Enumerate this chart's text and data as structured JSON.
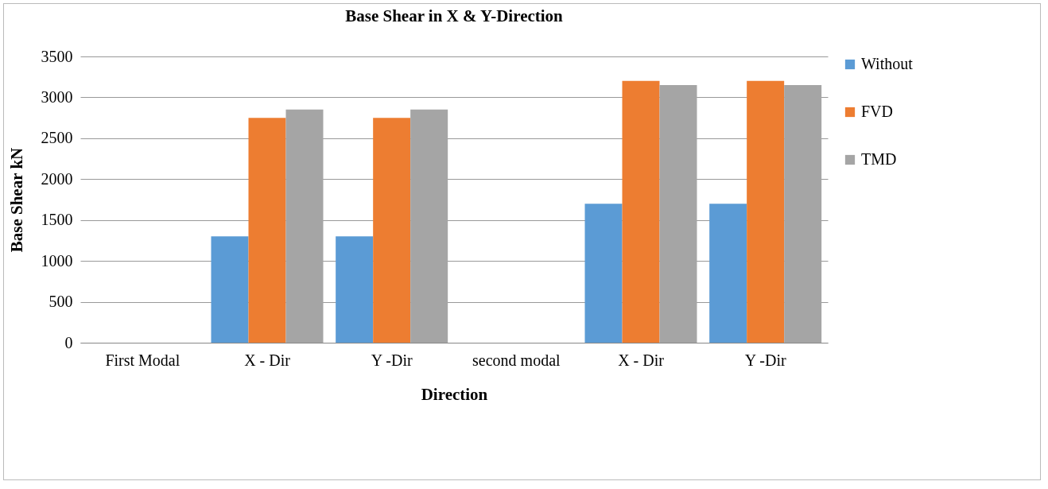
{
  "chart_data": {
    "type": "bar",
    "title": "Base Shear in X & Y-Direction",
    "xlabel": "Direction",
    "ylabel": "Base Shear kN",
    "categories": [
      "First Modal",
      "X - Dir",
      "Y -Dir",
      "second modal",
      "X - Dir",
      "Y -Dir"
    ],
    "series": [
      {
        "name": "Without",
        "color": "#5b9bd5",
        "values": [
          null,
          1300,
          1300,
          null,
          1700,
          1700
        ]
      },
      {
        "name": "FVD",
        "color": "#ed7d31",
        "values": [
          null,
          2750,
          2750,
          null,
          3200,
          3200
        ]
      },
      {
        "name": "TMD",
        "color": "#a5a5a5",
        "values": [
          null,
          2850,
          2850,
          null,
          3150,
          3150
        ]
      }
    ],
    "ylim": [
      0,
      3500
    ],
    "yticks": [
      0,
      500,
      1000,
      1500,
      2000,
      2500,
      3000,
      3500
    ],
    "grid": "y",
    "legend": "right"
  }
}
